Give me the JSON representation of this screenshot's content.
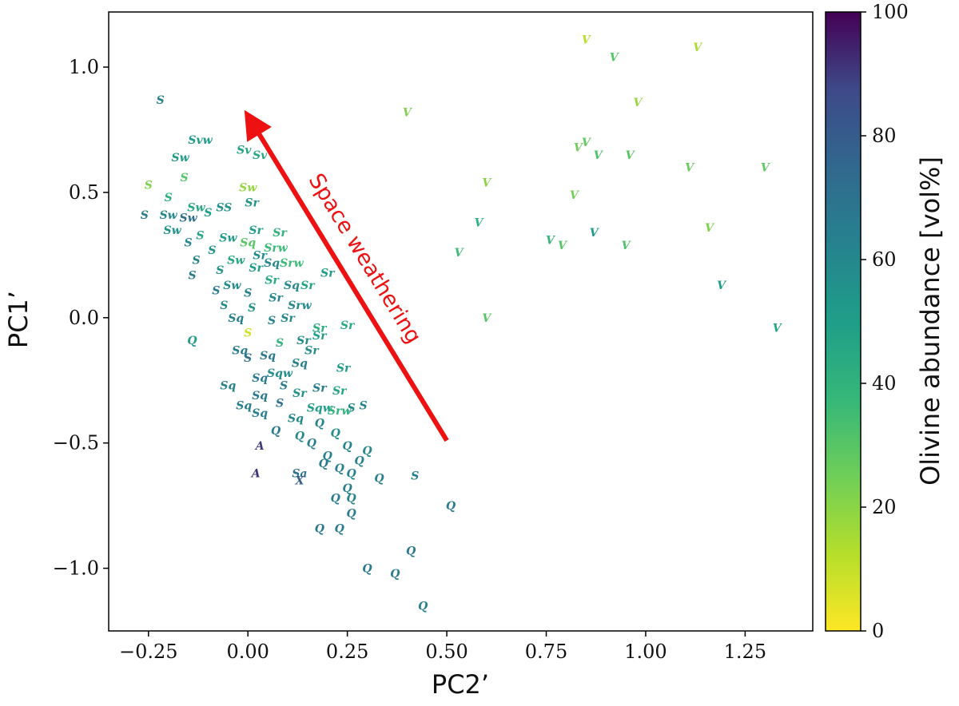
{
  "chart_data": {
    "type": "scatter",
    "title": "",
    "xlabel": "PC2’",
    "ylabel": "PC1’",
    "xlim": [
      -0.35,
      1.42
    ],
    "ylim": [
      -1.25,
      1.22
    ],
    "xticks": [
      -0.25,
      0.0,
      0.25,
      0.5,
      0.75,
      1.0,
      1.25
    ],
    "xtick_labels": [
      "−0.25",
      "0.00",
      "0.25",
      "0.50",
      "0.75",
      "1.00",
      "1.25"
    ],
    "yticks": [
      -1.0,
      -0.5,
      0.0,
      0.5,
      1.0
    ],
    "ytick_labels": [
      "−1.0",
      "−0.5",
      "0.0",
      "0.5",
      "1.0"
    ],
    "colorbar": {
      "label": "Olivine abundance [vol%]",
      "range": [
        0,
        100
      ],
      "ticks": [
        0,
        20,
        40,
        60,
        80,
        100
      ],
      "tick_labels": [
        "0",
        "20",
        "40",
        "60",
        "80",
        "100"
      ],
      "colormap": "viridis"
    },
    "annotation": {
      "text": "Space weathering",
      "arrow_from": [
        0.5,
        -0.49
      ],
      "arrow_to": [
        0.01,
        0.78
      ],
      "color": "#ee1111"
    },
    "points": [
      {
        "label": "V",
        "x": 0.85,
        "y": 1.11,
        "c": 12
      },
      {
        "label": "V",
        "x": 1.13,
        "y": 1.08,
        "c": 14
      },
      {
        "label": "V",
        "x": 0.92,
        "y": 1.04,
        "c": 30
      },
      {
        "label": "V",
        "x": 0.98,
        "y": 0.86,
        "c": 18
      },
      {
        "label": "V",
        "x": 0.4,
        "y": 0.82,
        "c": 22
      },
      {
        "label": "V",
        "x": 0.83,
        "y": 0.68,
        "c": 25
      },
      {
        "label": "V",
        "x": 0.85,
        "y": 0.7,
        "c": 28
      },
      {
        "label": "V",
        "x": 0.88,
        "y": 0.65,
        "c": 32
      },
      {
        "label": "V",
        "x": 0.96,
        "y": 0.65,
        "c": 30
      },
      {
        "label": "V",
        "x": 1.11,
        "y": 0.6,
        "c": 26
      },
      {
        "label": "V",
        "x": 1.3,
        "y": 0.6,
        "c": 28
      },
      {
        "label": "V",
        "x": 0.6,
        "y": 0.54,
        "c": 20
      },
      {
        "label": "V",
        "x": 0.82,
        "y": 0.49,
        "c": 24
      },
      {
        "label": "V",
        "x": 0.58,
        "y": 0.38,
        "c": 40
      },
      {
        "label": "V",
        "x": 1.16,
        "y": 0.36,
        "c": 22
      },
      {
        "label": "V",
        "x": 0.87,
        "y": 0.34,
        "c": 52
      },
      {
        "label": "V",
        "x": 0.76,
        "y": 0.31,
        "c": 38
      },
      {
        "label": "V",
        "x": 0.79,
        "y": 0.29,
        "c": 30
      },
      {
        "label": "V",
        "x": 0.95,
        "y": 0.29,
        "c": 32
      },
      {
        "label": "V",
        "x": 0.53,
        "y": 0.26,
        "c": 36
      },
      {
        "label": "V",
        "x": 1.19,
        "y": 0.13,
        "c": 50
      },
      {
        "label": "V",
        "x": 0.6,
        "y": 0.0,
        "c": 30
      },
      {
        "label": "V",
        "x": 1.33,
        "y": -0.04,
        "c": 48
      },
      {
        "label": "S",
        "x": -0.22,
        "y": 0.87,
        "c": 62
      },
      {
        "label": "Svw",
        "x": -0.12,
        "y": 0.71,
        "c": 52
      },
      {
        "label": "Sv",
        "x": -0.01,
        "y": 0.67,
        "c": 48
      },
      {
        "label": "Sv",
        "x": 0.03,
        "y": 0.65,
        "c": 45
      },
      {
        "label": "Sw",
        "x": -0.17,
        "y": 0.64,
        "c": 52
      },
      {
        "label": "S",
        "x": -0.16,
        "y": 0.56,
        "c": 30
      },
      {
        "label": "S",
        "x": -0.25,
        "y": 0.53,
        "c": 22
      },
      {
        "label": "Sw",
        "x": 0.0,
        "y": 0.52,
        "c": 18
      },
      {
        "label": "S",
        "x": -0.2,
        "y": 0.48,
        "c": 40
      },
      {
        "label": "Sr",
        "x": 0.01,
        "y": 0.46,
        "c": 55
      },
      {
        "label": "Sw",
        "x": -0.13,
        "y": 0.44,
        "c": 45
      },
      {
        "label": "S",
        "x": -0.26,
        "y": 0.41,
        "c": 65
      },
      {
        "label": "Sw",
        "x": -0.2,
        "y": 0.41,
        "c": 60
      },
      {
        "label": "Sw",
        "x": -0.15,
        "y": 0.4,
        "c": 72
      },
      {
        "label": "S",
        "x": -0.1,
        "y": 0.42,
        "c": 50
      },
      {
        "label": "SS",
        "x": -0.06,
        "y": 0.44,
        "c": 55
      },
      {
        "label": "Sw",
        "x": -0.19,
        "y": 0.35,
        "c": 55
      },
      {
        "label": "S",
        "x": -0.12,
        "y": 0.33,
        "c": 48
      },
      {
        "label": "Sr",
        "x": 0.02,
        "y": 0.35,
        "c": 50
      },
      {
        "label": "Sr",
        "x": 0.08,
        "y": 0.34,
        "c": 40
      },
      {
        "label": "Sw",
        "x": -0.05,
        "y": 0.32,
        "c": 52
      },
      {
        "label": "S",
        "x": -0.15,
        "y": 0.3,
        "c": 60
      },
      {
        "label": "Sq",
        "x": 0.0,
        "y": 0.3,
        "c": 30
      },
      {
        "label": "Srw",
        "x": 0.07,
        "y": 0.28,
        "c": 36
      },
      {
        "label": "S",
        "x": -0.09,
        "y": 0.27,
        "c": 55
      },
      {
        "label": "Sr",
        "x": 0.03,
        "y": 0.25,
        "c": 58
      },
      {
        "label": "S",
        "x": -0.13,
        "y": 0.23,
        "c": 62
      },
      {
        "label": "Sw",
        "x": -0.03,
        "y": 0.23,
        "c": 46
      },
      {
        "label": "Sq",
        "x": 0.06,
        "y": 0.22,
        "c": 60
      },
      {
        "label": "S",
        "x": -0.07,
        "y": 0.19,
        "c": 55
      },
      {
        "label": "Sr",
        "x": 0.02,
        "y": 0.2,
        "c": 50
      },
      {
        "label": "Srw",
        "x": 0.11,
        "y": 0.22,
        "c": 36
      },
      {
        "label": "Sr",
        "x": 0.2,
        "y": 0.18,
        "c": 52
      },
      {
        "label": "S",
        "x": -0.14,
        "y": 0.17,
        "c": 66
      },
      {
        "label": "Sr",
        "x": 0.06,
        "y": 0.15,
        "c": 45
      },
      {
        "label": "Sw",
        "x": -0.04,
        "y": 0.13,
        "c": 58
      },
      {
        "label": "Sq",
        "x": 0.11,
        "y": 0.13,
        "c": 60
      },
      {
        "label": "Sr",
        "x": 0.15,
        "y": 0.13,
        "c": 48
      },
      {
        "label": "S",
        "x": -0.08,
        "y": 0.11,
        "c": 66
      },
      {
        "label": "S",
        "x": 0.0,
        "y": 0.1,
        "c": 62
      },
      {
        "label": "Sr",
        "x": 0.07,
        "y": 0.08,
        "c": 60
      },
      {
        "label": "S",
        "x": -0.06,
        "y": 0.05,
        "c": 60
      },
      {
        "label": "Srw",
        "x": 0.13,
        "y": 0.05,
        "c": 60
      },
      {
        "label": "S",
        "x": 0.01,
        "y": 0.04,
        "c": 55
      },
      {
        "label": "Sq",
        "x": -0.03,
        "y": 0.0,
        "c": 64
      },
      {
        "label": "S",
        "x": 0.06,
        "y": -0.01,
        "c": 62
      },
      {
        "label": "Sr",
        "x": 0.1,
        "y": 0.0,
        "c": 60
      },
      {
        "label": "Sr",
        "x": 0.18,
        "y": -0.04,
        "c": 42
      },
      {
        "label": "Sr",
        "x": 0.25,
        "y": -0.03,
        "c": 45
      },
      {
        "label": "S",
        "x": 0.0,
        "y": -0.06,
        "c": 8
      },
      {
        "label": "Q",
        "x": -0.14,
        "y": -0.09,
        "c": 52
      },
      {
        "label": "Sr",
        "x": 0.14,
        "y": -0.09,
        "c": 58
      },
      {
        "label": "Sr",
        "x": 0.18,
        "y": -0.07,
        "c": 50
      },
      {
        "label": "S",
        "x": 0.08,
        "y": -0.1,
        "c": 40
      },
      {
        "label": "Sq",
        "x": -0.02,
        "y": -0.13,
        "c": 66
      },
      {
        "label": "Sq",
        "x": 0.05,
        "y": -0.15,
        "c": 68
      },
      {
        "label": "Sr",
        "x": 0.16,
        "y": -0.13,
        "c": 58
      },
      {
        "label": "Sq",
        "x": 0.13,
        "y": -0.18,
        "c": 64
      },
      {
        "label": "S",
        "x": 0.0,
        "y": -0.16,
        "c": 70
      },
      {
        "label": "Sqw",
        "x": 0.08,
        "y": -0.22,
        "c": 58
      },
      {
        "label": "Sq",
        "x": 0.03,
        "y": -0.24,
        "c": 66
      },
      {
        "label": "Sr",
        "x": 0.24,
        "y": -0.2,
        "c": 52
      },
      {
        "label": "S",
        "x": 0.09,
        "y": -0.27,
        "c": 66
      },
      {
        "label": "Sq",
        "x": -0.05,
        "y": -0.27,
        "c": 62
      },
      {
        "label": "Sr",
        "x": 0.18,
        "y": -0.28,
        "c": 64
      },
      {
        "label": "Sq",
        "x": 0.03,
        "y": -0.31,
        "c": 68
      },
      {
        "label": "Sr",
        "x": 0.13,
        "y": -0.3,
        "c": 56
      },
      {
        "label": "Sr",
        "x": 0.23,
        "y": -0.29,
        "c": 48
      },
      {
        "label": "S",
        "x": 0.08,
        "y": -0.34,
        "c": 70
      },
      {
        "label": "Sq",
        "x": -0.01,
        "y": -0.35,
        "c": 64
      },
      {
        "label": "Sqw",
        "x": 0.18,
        "y": -0.36,
        "c": 52
      },
      {
        "label": "S",
        "x": 0.26,
        "y": -0.36,
        "c": 60
      },
      {
        "label": "Srw",
        "x": 0.23,
        "y": -0.37,
        "c": 40
      },
      {
        "label": "Sq",
        "x": 0.03,
        "y": -0.38,
        "c": 64
      },
      {
        "label": "S",
        "x": 0.29,
        "y": -0.35,
        "c": 62
      },
      {
        "label": "Sq",
        "x": 0.12,
        "y": -0.4,
        "c": 60
      },
      {
        "label": "Q",
        "x": 0.18,
        "y": -0.42,
        "c": 62
      },
      {
        "label": "Q",
        "x": 0.07,
        "y": -0.45,
        "c": 66
      },
      {
        "label": "Q",
        "x": 0.13,
        "y": -0.47,
        "c": 60
      },
      {
        "label": "Q",
        "x": 0.22,
        "y": -0.46,
        "c": 58
      },
      {
        "label": "Q",
        "x": 0.16,
        "y": -0.5,
        "c": 64
      },
      {
        "label": "Q",
        "x": 0.25,
        "y": -0.51,
        "c": 62
      },
      {
        "label": "Q",
        "x": 0.3,
        "y": -0.53,
        "c": 60
      },
      {
        "label": "Q",
        "x": 0.2,
        "y": -0.55,
        "c": 62
      },
      {
        "label": "Q",
        "x": 0.28,
        "y": -0.57,
        "c": 64
      },
      {
        "label": "Q",
        "x": 0.19,
        "y": -0.58,
        "c": 66
      },
      {
        "label": "Q",
        "x": 0.23,
        "y": -0.6,
        "c": 64
      },
      {
        "label": "Q",
        "x": 0.26,
        "y": -0.62,
        "c": 62
      },
      {
        "label": "A",
        "x": 0.03,
        "y": -0.51,
        "c": 90
      },
      {
        "label": "A",
        "x": 0.02,
        "y": -0.62,
        "c": 92
      },
      {
        "label": "Sa",
        "x": 0.13,
        "y": -0.62,
        "c": 70
      },
      {
        "label": "X",
        "x": 0.13,
        "y": -0.65,
        "c": 80
      },
      {
        "label": "Q",
        "x": 0.33,
        "y": -0.64,
        "c": 64
      },
      {
        "label": "S",
        "x": 0.42,
        "y": -0.63,
        "c": 66
      },
      {
        "label": "Q",
        "x": 0.25,
        "y": -0.68,
        "c": 64
      },
      {
        "label": "Q",
        "x": 0.22,
        "y": -0.72,
        "c": 66
      },
      {
        "label": "Q",
        "x": 0.26,
        "y": -0.72,
        "c": 62
      },
      {
        "label": "Q",
        "x": 0.51,
        "y": -0.75,
        "c": 66
      },
      {
        "label": "Q",
        "x": 0.26,
        "y": -0.78,
        "c": 66
      },
      {
        "label": "Q",
        "x": 0.18,
        "y": -0.84,
        "c": 68
      },
      {
        "label": "Q",
        "x": 0.23,
        "y": -0.84,
        "c": 66
      },
      {
        "label": "Q",
        "x": 0.41,
        "y": -0.93,
        "c": 68
      },
      {
        "label": "Q",
        "x": 0.3,
        "y": -1.0,
        "c": 68
      },
      {
        "label": "Q",
        "x": 0.37,
        "y": -1.02,
        "c": 66
      },
      {
        "label": "Q",
        "x": 0.44,
        "y": -1.15,
        "c": 64
      }
    ]
  }
}
